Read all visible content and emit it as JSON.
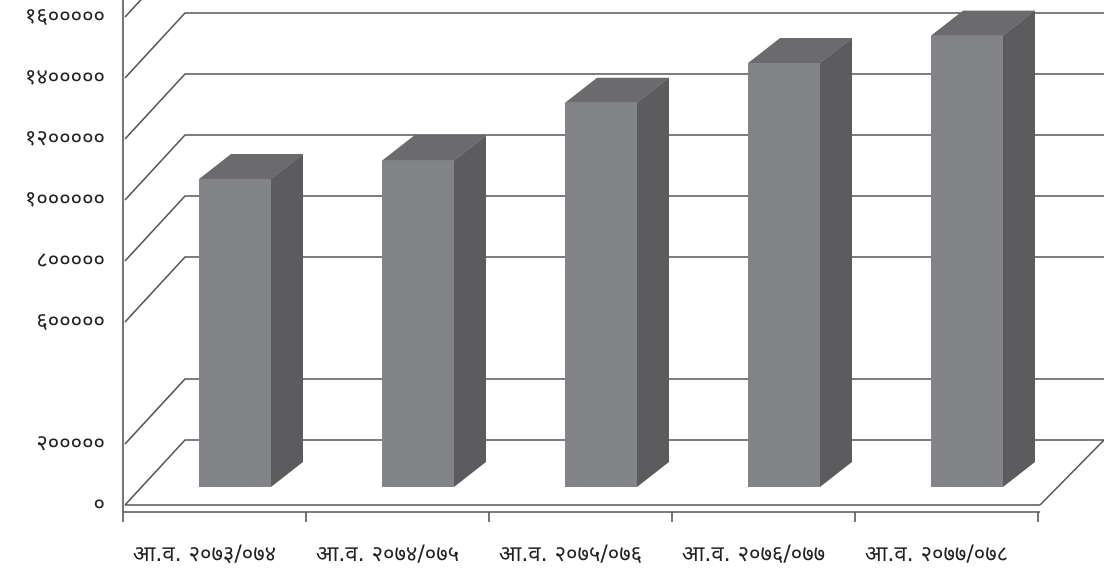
{
  "chart_data": {
    "type": "bar3d",
    "categories": [
      "आ.व. २०७३/०७४",
      "आ.व. २०७४/०७५",
      "आ.व. २०७५/०७६",
      "आ.व. २०७६/०७७",
      "आ.व. २०७७/०७८"
    ],
    "values": [
      1010000,
      1070000,
      1260000,
      1390000,
      1480000
    ],
    "color": "#838488",
    "ylim": [
      0,
      1600000
    ],
    "yticks": [
      {
        "value": 0,
        "label": "०"
      },
      {
        "value": 200000,
        "label": "२०००००"
      },
      {
        "value": 600000,
        "label": "६०००००"
      },
      {
        "value": 800000,
        "label": "८०००००"
      },
      {
        "value": 1000000,
        "label": "१००००००"
      },
      {
        "value": 1200000,
        "label": "१२०००००"
      },
      {
        "value": 1400000,
        "label": "१४०००००"
      },
      {
        "value": 1600000,
        "label": "१६०००००"
      }
    ],
    "grid": true
  }
}
